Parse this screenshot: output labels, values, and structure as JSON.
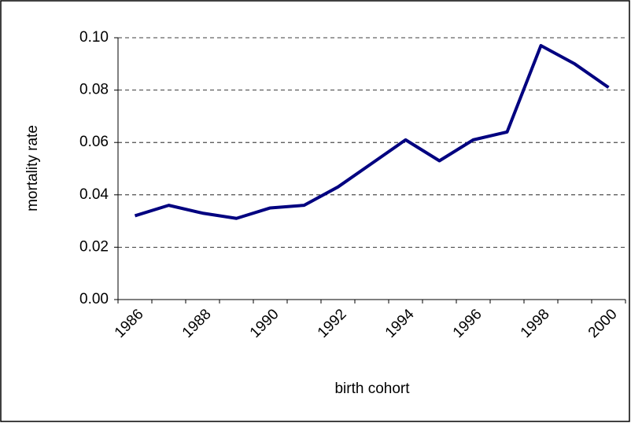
{
  "chart_data": {
    "type": "line",
    "x_label": "birth cohort",
    "y_label": "mortality rate",
    "categories": [
      "1986",
      null,
      "1988",
      null,
      "1990",
      null,
      "1992",
      null,
      "1994",
      null,
      "1996",
      null,
      "1998",
      null,
      "2000"
    ],
    "series": [
      {
        "name": "mortality rate",
        "color": "#000080",
        "values": [
          0.032,
          0.036,
          0.033,
          0.031,
          0.035,
          0.036,
          0.043,
          0.052,
          0.061,
          0.053,
          0.061,
          0.064,
          0.097,
          0.09,
          0.081
        ]
      }
    ],
    "ylim": [
      0,
      0.1
    ],
    "yticks": [
      {
        "value": 0,
        "label": "0.00"
      },
      {
        "value": 0.02,
        "label": "0.02"
      },
      {
        "value": 0.04,
        "label": "0.04"
      },
      {
        "value": 0.06,
        "label": "0.06"
      },
      {
        "value": 0.08,
        "label": "0.08"
      },
      {
        "value": 0.1,
        "label": "0.10"
      }
    ],
    "grid": true
  }
}
